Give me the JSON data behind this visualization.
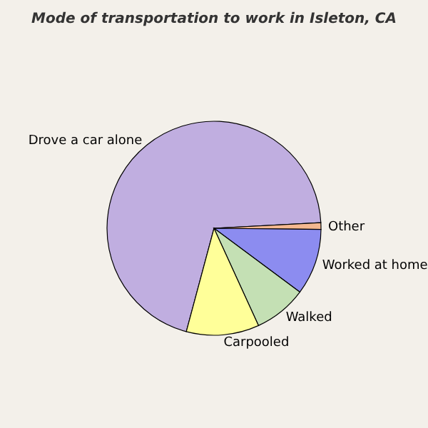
{
  "chart_data": {
    "type": "pie",
    "title": "Mode of transportation to work in Isleton, CA",
    "categories": [
      "Drove a car alone",
      "Other",
      "Worked at home",
      "Walked",
      "Carpooled"
    ],
    "values": [
      70,
      1,
      10,
      8,
      11
    ],
    "colors": [
      "#c0aee0",
      "#f4b890",
      "#8c8cf0",
      "#c4e0b4",
      "#ffff99"
    ]
  }
}
